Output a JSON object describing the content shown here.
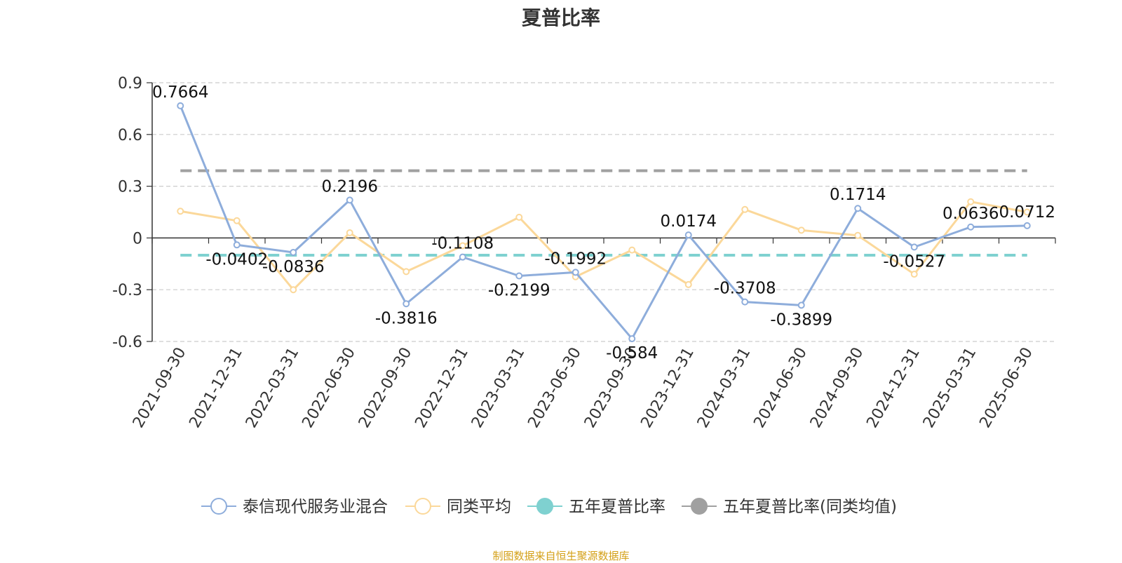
{
  "title": "夏普比率",
  "source": "制图数据来自恒生聚源数据库",
  "chart_data": {
    "type": "line",
    "title": "夏普比率",
    "categories": [
      "2021-09-30",
      "2021-12-31",
      "2022-03-31",
      "2022-06-30",
      "2022-09-30",
      "2022-12-31",
      "2023-03-31",
      "2023-06-30",
      "2023-09-30",
      "2023-12-31",
      "2024-03-31",
      "2024-06-30",
      "2024-09-30",
      "2024-12-31",
      "2025-03-31",
      "2025-06-30"
    ],
    "y_ticks": [
      0.9,
      0.6,
      0.3,
      0,
      -0.3,
      -0.6
    ],
    "y_tick_labels": [
      "0.9",
      "0.6",
      "0.3",
      "0",
      "-0.3",
      "-0.6"
    ],
    "ylim": [
      -0.6,
      0.9
    ],
    "grid": true,
    "legend_position": "bottom",
    "series": [
      {
        "name": "泰信现代服务业混合",
        "color": "#8eaddb",
        "values": [
          0.7664,
          -0.0402,
          -0.0836,
          0.2196,
          -0.3816,
          -0.1108,
          -0.2199,
          -0.1992,
          -0.584,
          0.0174,
          -0.3708,
          -0.3899,
          0.1714,
          -0.0527,
          0.0636,
          0.0712
        ],
        "labels": [
          "0.7664",
          "-0.0402",
          "-0.0836",
          "0.2196",
          "-0.3816",
          "-0.1108",
          "-0.2199",
          "-0.1992",
          "-0.584",
          "0.0174",
          "-0.3708",
          "-0.3899",
          "0.1714",
          "-0.0527",
          "0.0636",
          "0.0712"
        ]
      },
      {
        "name": "同类平均",
        "color": "#fbd89a",
        "values": [
          0.155,
          0.1,
          -0.3,
          0.03,
          -0.195,
          -0.045,
          0.12,
          -0.225,
          -0.07,
          -0.27,
          0.165,
          0.045,
          0.015,
          -0.21,
          0.21,
          0.15
        ]
      },
      {
        "name": "五年夏普比率",
        "color": "#7fd1d0",
        "dashed": true,
        "value": -0.1
      },
      {
        "name": "五年夏普比率(同类均值)",
        "color": "#a0a0a0",
        "dashed": true,
        "value": 0.39
      }
    ]
  }
}
